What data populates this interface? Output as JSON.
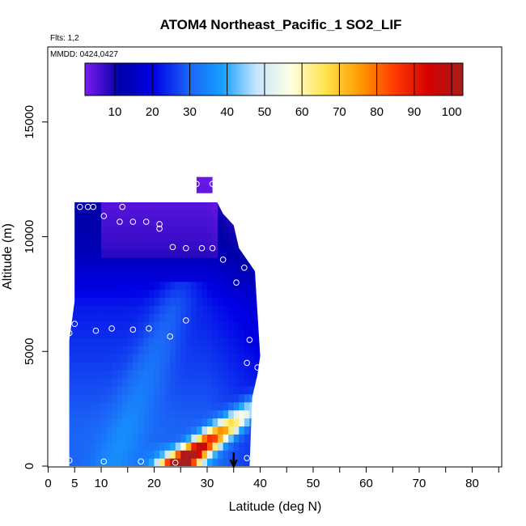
{
  "chart_data": {
    "type": "heatmap",
    "title": "ATOM4 Northeast_Pacific_1 SO2_LIF",
    "flights_label": "Flts: 1,2",
    "dates_label": "MMDD: 0424,0427",
    "xlabel": "Latitude (deg N)",
    "ylabel": "Altitude (m)",
    "xlim": [
      0,
      85
    ],
    "ylim": [
      0,
      17000
    ],
    "x_ticks": [
      0,
      5,
      10,
      20,
      30,
      40,
      50,
      60,
      70,
      80
    ],
    "y_ticks": [
      0,
      5000,
      10000,
      15000
    ],
    "colorbar": {
      "range": [
        2,
        103
      ],
      "ticks": [
        10,
        20,
        30,
        40,
        50,
        60,
        70,
        80,
        90,
        100
      ],
      "colors": [
        "#7a1cf0",
        "#0000a8",
        "#0000e6",
        "#1b62f6",
        "#15a0ff",
        "#c8e6ff",
        "#ffffe0",
        "#ffe34a",
        "#ff9b00",
        "#ff3c00",
        "#d40000",
        "#a81d1d"
      ]
    },
    "filled_region": {
      "left_edge": [
        [
          0,
          4
        ],
        [
          5500,
          4
        ],
        [
          7200,
          5
        ],
        [
          11500,
          5
        ]
      ],
      "right_edge": [
        [
          0,
          38
        ],
        [
          3000,
          38.5
        ],
        [
          4000,
          39.5
        ],
        [
          4800,
          40
        ],
        [
          8500,
          39
        ],
        [
          9500,
          36
        ],
        [
          10500,
          35
        ],
        [
          11000,
          33
        ],
        [
          11900,
          31
        ],
        [
          12600,
          31
        ]
      ],
      "cap": {
        "x": [
          28,
          31
        ],
        "y": [
          11900,
          12600
        ]
      }
    },
    "plume": {
      "core_latitude": 24,
      "core_altitude": 600,
      "core_value": 100
    },
    "sample_points": [
      [
        4,
        250
      ],
      [
        10.5,
        200
      ],
      [
        17.5,
        200
      ],
      [
        24,
        150
      ],
      [
        37.5,
        350
      ],
      [
        4,
        5800
      ],
      [
        5,
        6200
      ],
      [
        9,
        5900
      ],
      [
        12,
        6000
      ],
      [
        16,
        5950
      ],
      [
        19,
        6000
      ],
      [
        23,
        5650
      ],
      [
        26,
        6350
      ],
      [
        38,
        5500
      ],
      [
        37.5,
        4500
      ],
      [
        39.5,
        4300
      ],
      [
        35.5,
        8000
      ],
      [
        37,
        8650
      ],
      [
        33,
        9000
      ],
      [
        23.5,
        9550
      ],
      [
        26,
        9500
      ],
      [
        29,
        9500
      ],
      [
        31,
        9500
      ],
      [
        6,
        11300
      ],
      [
        7.5,
        11300
      ],
      [
        8.5,
        11300
      ],
      [
        14,
        11300
      ],
      [
        10.5,
        10900
      ],
      [
        13.5,
        10650
      ],
      [
        16,
        10650
      ],
      [
        18.5,
        10650
      ],
      [
        21,
        10550
      ],
      [
        21,
        10350
      ],
      [
        28,
        12300
      ],
      [
        31,
        12300
      ]
    ],
    "marker": {
      "latitude": 35,
      "altitude_top": 600,
      "altitude_bottom": 0
    }
  }
}
